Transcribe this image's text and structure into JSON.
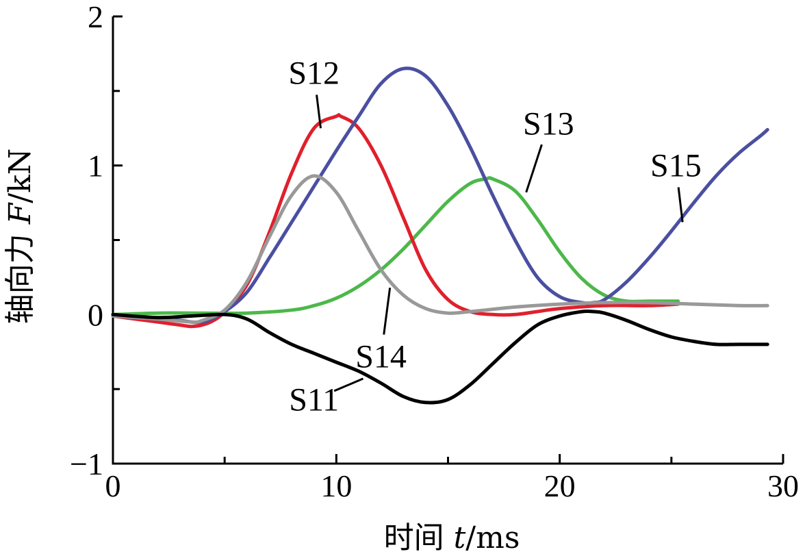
{
  "chart_data": {
    "type": "line",
    "xlabel": "时间 t/ms",
    "xlabel_parts": {
      "prefix": "时间 ",
      "var": "t",
      "suffix": "/ms"
    },
    "ylabel": "轴向力 F/kN",
    "ylabel_parts": {
      "prefix": "轴向力 ",
      "var": "F",
      "suffix": "/kN"
    },
    "xlim": [
      0,
      30
    ],
    "ylim": [
      -1,
      2
    ],
    "x_ticks": [
      0,
      10,
      20,
      30
    ],
    "x_tick_labels": [
      "0",
      "10",
      "20",
      "30"
    ],
    "x_minor_ticks": [
      5,
      15,
      25
    ],
    "y_ticks": [
      -1,
      0,
      1,
      2
    ],
    "y_tick_labels": [
      "−1",
      "0",
      "1",
      "2"
    ],
    "y_minor_ticks": [
      -0.5,
      0.5,
      1.5
    ],
    "grid": false,
    "legend": "none (series labeled inline with leader lines)",
    "series": [
      {
        "name": "S11",
        "color": "#000000",
        "x": [
          0,
          2,
          3.5,
          5,
          6,
          7,
          8,
          9,
          10,
          11,
          12,
          13,
          14,
          15,
          16,
          17,
          18,
          19,
          20,
          21,
          21.5,
          22,
          23,
          24,
          25,
          26,
          27,
          28,
          29,
          29.3
        ],
        "y": [
          0,
          -0.02,
          -0.01,
          0.0,
          -0.03,
          -0.12,
          -0.2,
          -0.26,
          -0.32,
          -0.38,
          -0.46,
          -0.55,
          -0.59,
          -0.57,
          -0.47,
          -0.33,
          -0.19,
          -0.07,
          -0.01,
          0.02,
          0.02,
          0.01,
          -0.04,
          -0.1,
          -0.15,
          -0.18,
          -0.2,
          -0.2,
          -0.2,
          -0.2
        ],
        "label_anchor": [
          11.2,
          -0.43
        ],
        "label_pos": [
          9,
          -0.57
        ]
      },
      {
        "name": "S12",
        "color": "#e0202c",
        "x": [
          0,
          1,
          2,
          3,
          3.5,
          4,
          4.5,
          5,
          6,
          7,
          8,
          9,
          10,
          10.2,
          11,
          12,
          13,
          14,
          15,
          16,
          17,
          18,
          19,
          20,
          22,
          24,
          25.3
        ],
        "y": [
          -0.01,
          -0.03,
          -0.05,
          -0.07,
          -0.08,
          -0.07,
          -0.04,
          0.02,
          0.2,
          0.55,
          0.95,
          1.25,
          1.33,
          1.33,
          1.25,
          1.0,
          0.65,
          0.3,
          0.1,
          0.02,
          0.0,
          0.0,
          0.02,
          0.04,
          0.06,
          0.06,
          0.07
        ],
        "label_anchor": [
          9.3,
          1.25
        ],
        "label_pos": [
          9.0,
          1.62
        ]
      },
      {
        "name": "S13",
        "color": "#4cb84a",
        "x": [
          0,
          2,
          4,
          6,
          8,
          9,
          10,
          11,
          12,
          13,
          14,
          15,
          16,
          16.7,
          17,
          18,
          19,
          20,
          21,
          22,
          23,
          24,
          25.3
        ],
        "y": [
          0,
          0.01,
          0.01,
          0.01,
          0.03,
          0.06,
          0.11,
          0.19,
          0.3,
          0.44,
          0.6,
          0.76,
          0.88,
          0.91,
          0.91,
          0.83,
          0.64,
          0.42,
          0.24,
          0.13,
          0.09,
          0.09,
          0.09
        ],
        "label_anchor": [
          18.5,
          0.82
        ],
        "label_pos": [
          19.5,
          1.28
        ]
      },
      {
        "name": "S14",
        "color": "#999999",
        "x": [
          0,
          2,
          3.5,
          4,
          5,
          6,
          7,
          8,
          9,
          10,
          11,
          12,
          13,
          14,
          15,
          16,
          18,
          20,
          22,
          24,
          26,
          28,
          29.3
        ],
        "y": [
          -0.01,
          -0.03,
          -0.05,
          -0.04,
          0.03,
          0.22,
          0.52,
          0.8,
          0.93,
          0.82,
          0.56,
          0.3,
          0.13,
          0.04,
          0.01,
          0.02,
          0.05,
          0.07,
          0.08,
          0.08,
          0.07,
          0.06,
          0.06
        ],
        "label_anchor": [
          12.4,
          0.18
        ],
        "label_pos": [
          12.0,
          -0.28
        ]
      },
      {
        "name": "S15",
        "color": "#4a4fa0",
        "x": [
          0,
          1,
          2,
          3,
          4,
          5,
          6,
          7,
          8,
          9,
          10,
          11,
          12,
          13,
          14,
          15,
          16,
          17,
          18,
          19,
          20,
          21,
          21.5,
          22,
          23,
          24,
          25,
          26,
          27,
          28,
          29,
          29.3
        ],
        "y": [
          -0.01,
          -0.02,
          -0.03,
          -0.04,
          -0.05,
          0.02,
          0.15,
          0.38,
          0.62,
          0.86,
          1.1,
          1.33,
          1.55,
          1.65,
          1.6,
          1.4,
          1.12,
          0.8,
          0.5,
          0.25,
          0.12,
          0.08,
          0.08,
          0.1,
          0.22,
          0.38,
          0.56,
          0.75,
          0.93,
          1.08,
          1.2,
          1.24
        ],
        "label_anchor": [
          25.5,
          0.62
        ],
        "label_pos": [
          25.2,
          1.0
        ]
      }
    ]
  }
}
